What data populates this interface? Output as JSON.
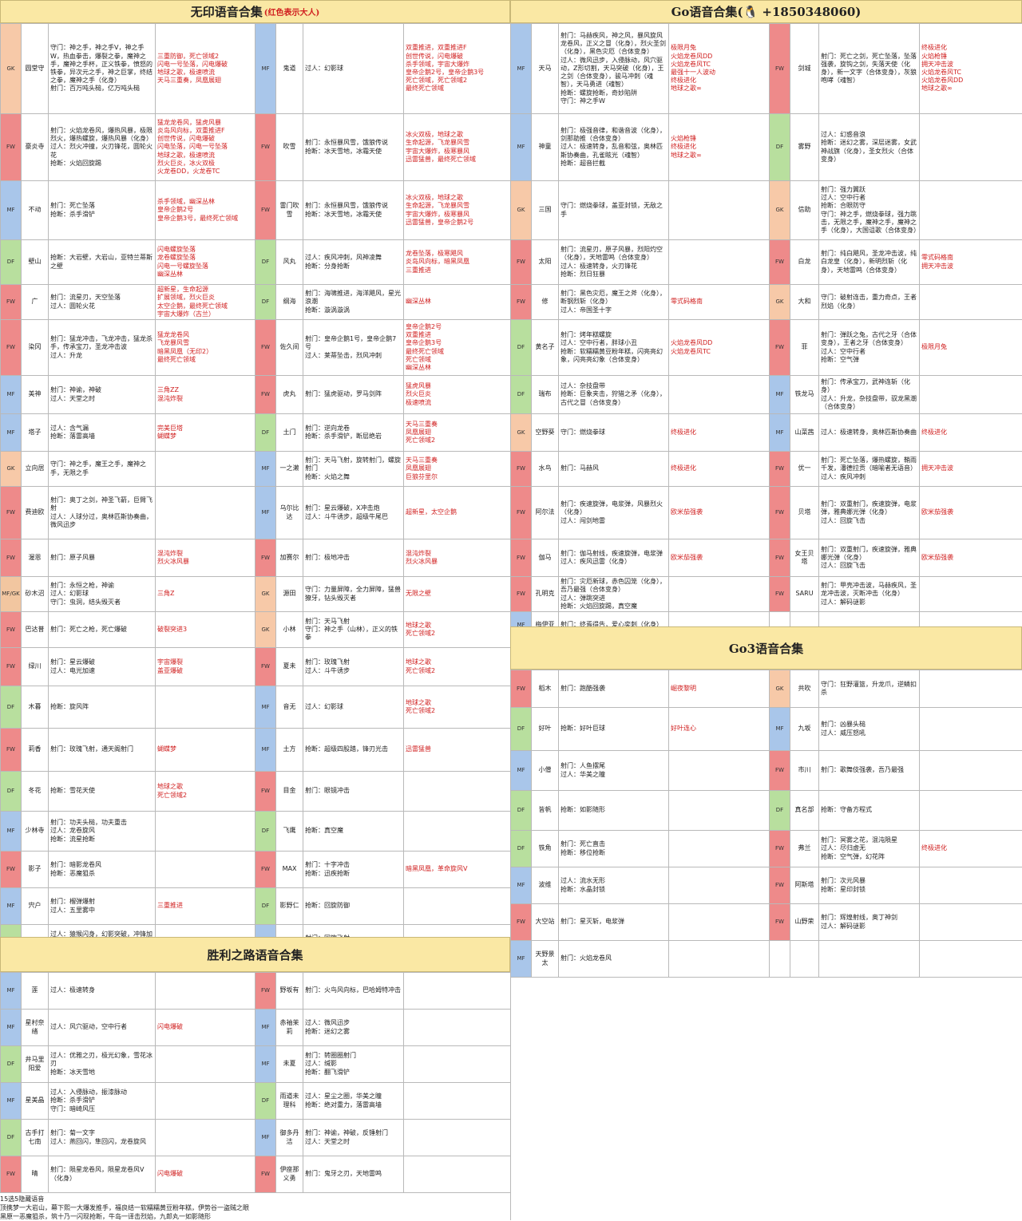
{
  "headers": {
    "wuyin": "无印语音合集",
    "wuyin_note": "(红色表示大人)",
    "go": "Go语音合集(🐧 +1850348060)",
    "go3": "Go3语音合集",
    "shengli": "胜利之路语音合集"
  },
  "wuyin_rows": [
    {
      "p1": "GK",
      "n1": "圆堂守",
      "a1": "守门：神之手，神之手V，神之手W，热血拳击，爆裂之拳，魔神之手，魔神之手杯，正义铁拳，愤怒的铁拳，异次元之手，神之巨掌，终结之拳，魔神之手（化身）\n射门：百万吨头槌，亿万吨头槌",
      "b1": "三重防御，死亡领域2\n闪电一号坠落，闪电爆破\n地球之歌，极速喷流\n天马三重奏，凤凰展翅",
      "p2": "MF",
      "n2": "鬼道",
      "a2": "过人：幻影球",
      "b2": "双重推进，双重推进F\n创世传说，闪电爆破\n杀手领域，宇宙大爆炸\n皇帝企鹅2号，皇帝企鹅3号\n死亡领域，死亡领域2\n最终死亡领域"
    },
    {
      "p1": "FW",
      "n1": "豪炎寺",
      "a1": "射门：火焰龙卷风，爆热风暴，极限烈火，爆热螺旋，爆热风暴（化身）\n过人：烈火冲撞，火刃锋花，圆轮火花\n抢断：火焰回旋踢",
      "b1": "猛龙龙卷风，猛虎风暴\n炎岛风向标，双重推进F\n创世传说，闪电爆破\n闪电坠落，闪电一号坠落\n地球之歌，极速喷流\n烈火巨炎，冰火双极\n火龙卷DD，火龙卷TC",
      "p2": "FW",
      "n2": "吹雪",
      "a2": "射门：永恒暴风雪，饿狼传说\n抢断：冰天雪地，冰霜天使",
      "b2": "冰火双极，地球之歌\n生命起源，飞龙暴风雪\n宇宙大爆炸，极寒暴风\n迅雷猛兽，最终死亡领域"
    },
    {
      "p1": "MF",
      "n1": "不动",
      "a1": "射门：死亡坠落\n抢断：杀手滑铲",
      "b1": "杀手领域，幽深丛林\n皇帝企鹅2号\n皇帝企鹅3号，最终死亡领域",
      "p2": "FW",
      "n2": "雷门吹雪",
      "a2": "射门：永恒暴风雪，饿狼传说\n抢断：冰天雪地，冰霜天使",
      "b2": "冰火双极，地球之歌\n生命起源，飞龙暴风雪\n宇宙大爆炸，极寒暴风\n迅雷猛兽，皇帝企鹅2号"
    },
    {
      "p1": "DF",
      "n1": "壁山",
      "a1": "抢断：大岩壁，大岩山，亚特兰蒂斯之壁",
      "b1": "闪电螺旋坠落\n龙卷螺旋坠落\n闪电一号螺旋坠落\n幽深丛林",
      "p2": "DF",
      "n2": "风丸",
      "a2": "过人：疾风冲刺，风神凌舞\n抢断：分身抢断",
      "b2": "龙卷坠落，极寒飓风\n炎岛风向标，暗黑凤凰\n三重推进"
    },
    {
      "p1": "FW",
      "n1": "广",
      "a1": "射门：流星刃，天空坠落\n过人：圆轮火花",
      "b1": "超新星，生命起源\n扩展领域，烈火巨炎\n太空企鹅，最终死亡领域\n宇宙大爆炸（古兰）",
      "p2": "DF",
      "n2": "纲海",
      "a2": "射门：海啸推进，海洋飓风，星光浪潮\n抢断：漩涡漩涡",
      "b2": "幽深丛林"
    },
    {
      "p1": "FW",
      "n1": "染冈",
      "a1": "射门：猛龙冲击，飞龙冲击，猛龙杀手，传承宝刀，圣龙冲击波\n过人：升龙",
      "b1": "猛龙龙卷风\n飞龙暴风雪\n暗黑凤凰（无印2）\n最终死亡领域",
      "p2": "FW",
      "n2": "佐久间",
      "a2": "射门：皇帝企鹅1号，皇帝企鹅7号\n过人：莱蒂坠击，烈风冲刺",
      "b2": "皇帝企鹅2号\n双重推进\n皇帝企鹅3号\n最终死亡领域\n死亡领域\n幽深丛林"
    },
    {
      "p1": "MF",
      "n1": "美神",
      "a1": "射门：神谕，神破\n过人：天堂之时",
      "b1": "三角ZZ\n混沌炸裂",
      "p2": "FW",
      "n2": "虎丸",
      "a2": "射门：猛虎驱动，罗马剑阵",
      "b2": "猛虎风暴\n烈火巨炎\n极速喷流"
    },
    {
      "p1": "MF",
      "n1": "塔子",
      "a1": "过人：含气漏\n抢断：落雷高墙",
      "b1": "完美巨塔\n蝴蝶梦",
      "p2": "DF",
      "n2": "土门",
      "a2": "射门：逆向龙卷\n抢断：杀手滑铲，断层绝岩",
      "b2": "天马三重奏\n凤凰展翅\n死亡领域2"
    },
    {
      "p1": "GK",
      "n1": "立向居",
      "a1": "守门：神之手，魔王之手，魔神之手，无限之手",
      "b1": "",
      "p2": "MF",
      "n2": "一之濑",
      "a2": "射门：天马飞射，旋转射门，螺旋射门\n抢断：火焰之舞",
      "b2": "天马三重奏\n凤凰展翅\n巨狼芬里尔"
    },
    {
      "p1": "FW",
      "n1": "费迪欧",
      "a1": "射门：奥丁之剑，神圣飞箭，巨臂飞射\n过人：人球分过，奥林匹斯协奏曲，微风迅步",
      "b1": "",
      "p2": "MF",
      "n2": "乌尔比达",
      "a2": "射门：星云爆破，X冲击炮\n过人：斗牛诱步，超级牛尾巴",
      "b2": "超新星，太空企鹅"
    },
    {
      "p1": "FW",
      "n1": "渥恩",
      "a1": "射门：原子风暴",
      "b1": "混沌炸裂\n烈火冰风暴",
      "p2": "FW",
      "n2": "加赛尔",
      "a2": "射门：极地冲击",
      "b2": "混沌炸裂\n烈火冰风暴"
    },
    {
      "p1": "MFGK",
      "n1": "砂木沼",
      "a1": "射门：永恒之枪，神谕\n过人：幻影球\n守门：虫洞，结头毁灭者",
      "b1": "三角Z",
      "p2": "GK",
      "n2": "源田",
      "a2": "守门：力量屏障，全力屏障，猛兽獠牙，钻头毁灭者",
      "b2": "无限之壁"
    },
    {
      "p1": "FW",
      "n1": "巴达普",
      "a1": "射门：死亡之枪，死亡爆破",
      "b1": "破裂突进3",
      "p2": "GK",
      "n2": "小林",
      "a2": "射门：天马飞射\n守门：神之手（山林），正义的铁拳",
      "b2": "地球之歌\n死亡领域2"
    },
    {
      "p1": "FW",
      "n1": "绿川",
      "a1": "射门：星云爆破\n过人：电光加速",
      "b1": "宇宙爆裂\n盖亚爆破",
      "p2": "FW",
      "n2": "夏未",
      "a2": "射门：玫瑰飞射\n过人：斗牛诱步",
      "b2": "地球之歌\n死亡领域2"
    },
    {
      "p1": "DF",
      "n1": "木暮",
      "a1": "抢断：旋风阵",
      "b1": "",
      "p2": "MF",
      "n2": "音无",
      "a2": "过人：幻影球",
      "b2": "地球之歌\n死亡领域2"
    },
    {
      "p1": "FW",
      "n1": "莉香",
      "a1": "射门：玫瑰飞射，通天阁射门",
      "b1": "蝴蝶梦",
      "p2": "MF",
      "n2": "土方",
      "a2": "抢断：超级四股踏，锋刃光击",
      "b2": "迅雷猛兽"
    },
    {
      "p1": "DF",
      "n1": "冬花",
      "a1": "抢断：雪花天使",
      "b1": "地球之歌\n死亡领域2",
      "p2": "FW",
      "n2": "目金",
      "a2": "射门：眼镜冲击",
      "b2": ""
    },
    {
      "p1": "MF",
      "n1": "少林寺",
      "a1": "射门：功夫头槌，功夫重击\n过人：龙卷旋风\n抢断：流星抢断",
      "b1": "",
      "p2": "DF",
      "n2": "飞鹰",
      "a2": "抢断：真空魔",
      "b2": ""
    },
    {
      "p1": "FW",
      "n1": "影子",
      "a1": "射门：暗影龙卷风\n抢断：恶魔狙杀",
      "b1": "",
      "p2": "FW",
      "n2": "MAX",
      "a2": "射门：十字冲击\n抢断：迅疾抢断",
      "b2": "暗黑凤凰，革命旋风V"
    },
    {
      "p1": "MF",
      "n1": "宍户",
      "a1": "射门：榴弹爆射\n过人：五里雾中",
      "b1": "三重推进",
      "p2": "DF",
      "n2": "影野仁",
      "a2": "抢断：回旋防御",
      "b2": ""
    },
    {
      "p1": "DF",
      "n1": "栗松",
      "a1": "过人：猿猴闪身，幻影突破，冲锋加速\n抢断：螺旋踢击",
      "b1": "三重推进",
      "p2": "MF",
      "n2": "半田",
      "a2": "射门：回旋飞射\n抢断：龙卷封锁",
      "b2": "革命旋风V"
    }
  ],
  "go_rows": [
    {
      "p1": "MF",
      "n1": "天马",
      "a1": "射门：马赫疾风，神之风，暴风旋风龙卷风，正义之冒（化身），烈火圣剑（化身），黑色灾厄（合体变身）\n过人：微风迅步，入侵脉动，风穴驱动，Z形切割，天马突破（化身），王之剑（合体变身），骏马冲刺（魂智），天马勇进（魂智）\n抢断：螺旋抢断，奇妙陷阱\n守门：神之手W",
      "b1": "极限月兔\n火焰龙卷风DD\n火焰龙卷风TC\n最强十一人波动\n终极进化\n地球之歌∞",
      "p2": "FW",
      "n2": "剑城",
      "a2": "射门：死亡之剑，死亡坠落，坠落强袭，旋钩之剑，失落天使（化身），新一文字（合体变身），灰狼咆哮（魂智）",
      "b2": "终极进化\n火焰枪锤\n拥天冲击波\n火焰龙卷风TC\n火焰龙卷风DD\n地球之歌∞"
    },
    {
      "p1": "MF",
      "n1": "神童",
      "a1": "射门：极强音律，和谐音波（化身），剑那助推（合体变身）\n过人：极速转身，乱音和弦，奥林匹斯协奏曲，孔雀眩光（魂智）\n抢断：超音拦截",
      "b1": "火焰枪锤\n终极进化\n地球之歌∞",
      "p2": "DF",
      "n2": "雾野",
      "a2": "过人：幻惑音浪\n抢断：迷幻之雾，深层迷雾，女武神战旗（化身），圣女烈火（合体变身）",
      "b2": ""
    },
    {
      "p1": "GK",
      "n1": "三国",
      "a1": "守门：燃烧拳球，盖亚封锁，无敌之手",
      "b1": "",
      "p2": "GK",
      "n2": "信助",
      "a2": "射门：强力翼跃\n过人：空中行者\n抢断：合眼防守\n守门：神之手，燃烧拳球，强力跳击，无限之手，魔神之手，魔神之手（化身），大国诅歌（合体变身）",
      "b2": ""
    },
    {
      "p1": "FW",
      "n1": "太阳",
      "a1": "射门：流星刃，原子风暴，烈阳灼空（化身），天地雷鸣（合体变身）\n过人：极速转身，火刃锋花\n抢断：烈日狂暴",
      "b1": "",
      "p2": "FW",
      "n2": "白龙",
      "a2": "射门：纯白飓风，圣龙冲击波，纯白龙皇（化身），新明烈斩（化身），天地雷鸣（合体变身）",
      "b2": "零式码格南\n拥天冲击波"
    },
    {
      "p1": "FW",
      "n1": "修",
      "a1": "射门：黑色灾厄，魔王之斧（化身），断钢烈斩（化身）\n过人：帝国圣十字",
      "b1": "零式码格南",
      "p2": "GK",
      "n2": "大和",
      "a2": "守门：破射连击，重力奇点，王者烈焰（化身）",
      "b2": ""
    },
    {
      "p1": "DF",
      "n1": "黄名子",
      "a1": "射门：烤年糕螺旋\n过人：空中行者，胖球小丑\n抢断：软糯糯黄豆粉年糕，闪亮亮幻象，闪亮亮幻象（合体变身）",
      "b1": "火焰龙卷风DD\n火焰龙卷风TC",
      "p2": "FW",
      "n2": "菲",
      "a2": "射门：弹跃之兔，古代之牙（合体变身），王者之牙（合体变身）\n过人：空中行者\n抢断：空气弹",
      "b2": "极限月兔"
    },
    {
      "p1": "DF",
      "n1": "瑞布",
      "a1": "过人：杂技盘带\n抢断：巨象夹击，狩猎之矛（化身），古代之冒（合体变身）",
      "b1": "",
      "p2": "MF",
      "n2": "铁龙马",
      "a2": "射门：传承宝刀，武神连斩（化身）\n过人：升龙，杂技盘带，驭龙黑潮（合体变身）",
      "b2": ""
    },
    {
      "p1": "GK",
      "n1": "空野葵",
      "a1": "守门：燃烧拳球",
      "b1": "终极进化",
      "p2": "MF",
      "n2": "山菜茜",
      "a2": "过人：极速转身，奥林匹斯协奏曲",
      "b2": "终极进化"
    },
    {
      "p1": "FW",
      "n1": "水鸟",
      "a1": "射门：马赫风",
      "b1": "终极进化",
      "p2": "FW",
      "n2": "优一",
      "a2": "射门：死亡坠落，爆热螺旋，鞘雨千发，潘德拉贡（暗喻者无语音）\n过人：疾风冲刺",
      "b2": "拥天冲击波"
    },
    {
      "p1": "FW",
      "n1": "阿尔法",
      "a1": "射门：疾速旋弹，电浆弹，风暴烈火（化身）\n过人：闯剑地雷",
      "b1": "欧米茄强袭",
      "p2": "FW",
      "n2": "贝塔",
      "a2": "射门：双重射门，疾速旋弹，电浆弹，雅典娜光弹（化身）\n过人：回旋飞击",
      "b2": "欧米茄强袭"
    },
    {
      "p1": "FW",
      "n1": "伽马",
      "a1": "射门：伽马射线，疾速旋弹，电浆弹\n过人：疾风迅雷（化身）",
      "b1": "欧米茄强袭",
      "p2": "FW",
      "n2": "女王贝塔",
      "a2": "射门：双重射门，疾速旋弹，雅典娜光弹（化身）\n过人：回旋飞击",
      "b2": "欧米茄强袭"
    },
    {
      "p1": "FW",
      "n1": "孔明克",
      "a1": "射门：灾厄新球，赤色囚笼（化身），吾乃最强（合体变身）\n过人：弹跳突进\n抢断：火焰回旋踢，真空魔",
      "b1": "",
      "p2": "FW",
      "n2": "SARU",
      "a2": "射门：甲壳冲击波，马赫疾风，圣龙冲击波，灭断冲击（化身）\n过人：解码谜影",
      "b2": ""
    },
    {
      "p1": "MF",
      "n1": "梅伊亚",
      "a1": "射门：终焉得告，爱心奕刺（化身）",
      "b1": "",
      "p2": "",
      "n2": "",
      "a2": "",
      "b2": ""
    }
  ],
  "go3_rows": [
    {
      "p1": "FW",
      "n1": "稻木",
      "a1": "射门：跑酷强袭",
      "b1": "崛夜黎明",
      "p2": "GK",
      "n2": "共吹",
      "a2": "守门：狂野灌篮，升龙爪，逆鳞扣杀",
      "b2": ""
    },
    {
      "p1": "DF",
      "n1": "好叶",
      "a1": "抢断：好叶巨球",
      "b1": "好叶连心",
      "p2": "MF",
      "n2": "九坂",
      "a2": "射门：凶暴头槌\n过人：威压怒吼",
      "b2": ""
    },
    {
      "p1": "MF",
      "n1": "小僧",
      "a1": "射门：人鱼摆尾\n过人：华美之瞳",
      "b1": "",
      "p2": "FW",
      "n2": "市川",
      "a2": "射门：歌舞伎强袭，吾乃最强",
      "b2": ""
    },
    {
      "p1": "DF",
      "n1": "皆帆",
      "a1": "抢断：如影随形",
      "b1": "",
      "p2": "DF",
      "n2": "真名部",
      "a2": "抢断：守备方程式",
      "b2": ""
    },
    {
      "p1": "DF",
      "n1": "铁角",
      "a1": "射门：死亡直击\n抢断：移位抢断",
      "b1": "",
      "p2": "FW",
      "n2": "弗兰",
      "a2": "射门：冥雾之花，混沌陨星\n过人：尽归虚无\n抢断：空气弹，幻花阵",
      "b2": "终极进化"
    },
    {
      "p1": "MF",
      "n1": "波维",
      "a1": "过人：流水无形\n抢断：水晶封锁",
      "b1": "",
      "p2": "FW",
      "n2": "阿斯塔",
      "a2": "射门：次元风暴\n抢断：星印封锁",
      "b2": ""
    },
    {
      "p1": "FW",
      "n1": "大空站",
      "a1": "射门：星灭斩，电浆弹",
      "b1": "",
      "p2": "FW",
      "n2": "山野荣",
      "a2": "射门：辉煌射线，奥丁神剑\n过人：解码谜影",
      "b2": ""
    },
    {
      "p1": "MF",
      "n1": "天野景太",
      "a1": "射门：火焰龙卷风",
      "b1": "",
      "p2": "",
      "n2": "",
      "a2": "",
      "b2": ""
    }
  ],
  "sl_rows": [
    {
      "p1": "MF",
      "n1": "莲",
      "a1": "过人：极速转身",
      "b1": "",
      "p2": "FW",
      "n2": "野坂有",
      "a2": "射门：火鸟风向标，巴哈姆特冲击",
      "b2": ""
    },
    {
      "p1": "MF",
      "n1": "星村奈绪",
      "a1": "过人：风穴驱动，空中行者",
      "b1": "闪电爆破",
      "p2": "MF",
      "n2": "赤袖茉莉",
      "a2": "过人：微风迅步\n抢断：迷幻之雾",
      "b2": ""
    },
    {
      "p1": "DF",
      "n1": "井马里阳爱",
      "a1": "过人：优雅之刃，极光幻象，雪花冰刃\n抢断：冰天雪地",
      "b1": "",
      "p2": "MF",
      "n2": "未夏",
      "a2": "射门：转圈圈射门\n过人：缄影\n抢断：翻飞滑铲",
      "b2": ""
    },
    {
      "p1": "MF",
      "n1": "星美晶",
      "a1": "过人：入侵脉动，振漆脉动\n抢断：杀手滑铲\n守门：暗崎风压",
      "b1": "",
      "p2": "DF",
      "n2": "雨道未理科",
      "a2": "过人：星尘之圈，华美之瞳\n抢断：绝对重力，落雷高墙",
      "b2": ""
    },
    {
      "p1": "DF",
      "n1": "古手打七南",
      "a1": "射门：菊一文字\n过人：燕回闪，隼回闪，龙卷旋风",
      "b1": "",
      "p2": "MF",
      "n2": "御多丹洁",
      "a2": "射门：神谕，神破，反锤射门\n过人：天堂之时",
      "b2": ""
    },
    {
      "p1": "FW",
      "n1": "晴",
      "a1": "射门：陨星龙卷风，陨星龙卷风V（化身）",
      "b1": "闪电爆破",
      "p2": "FW",
      "n2": "伊座那义勇",
      "a2": "射门：鬼牙之刃，天地雷鸣",
      "b2": ""
    }
  ],
  "notes": [
    "15选5隐藏语音",
    "顶携梦一大岩山，幕下熙一大爆发推手，福良结一软糯糯黄豆粉年糕，伊势谷一盗贼之眼",
    "黑原一恶魔狙杀，筑十乃一闪现抢断，牛岛一译击烈焰，九郎丸一如影随形"
  ]
}
